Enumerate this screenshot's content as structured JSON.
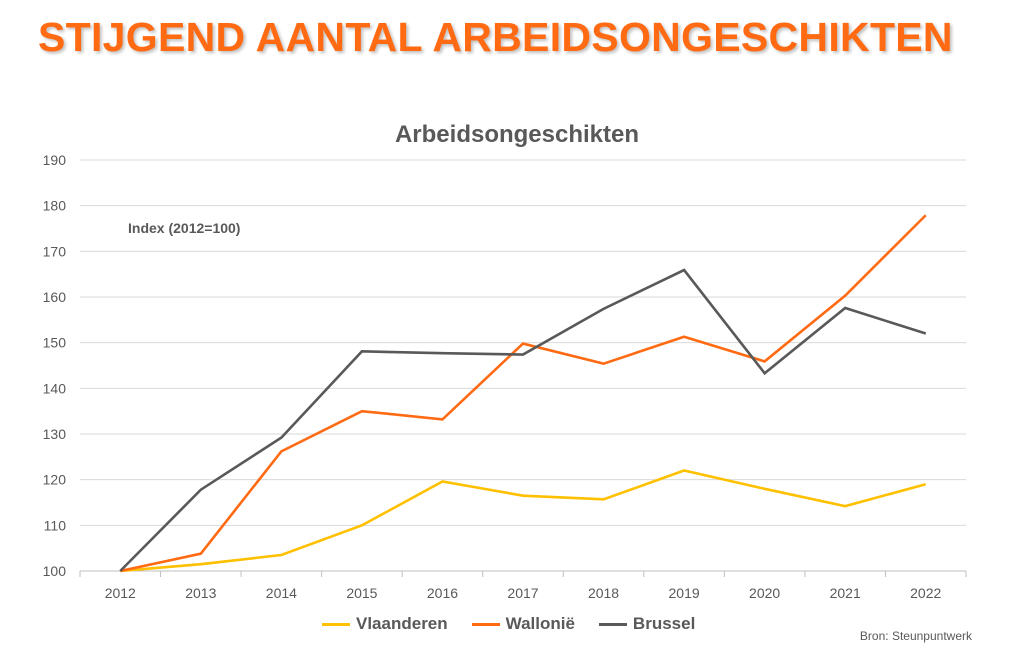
{
  "headline": "STIJGEND AANTAL ARBEIDSONGESCHIKTEN",
  "source": "Bron: Steunpuntwerk",
  "chart_data": {
    "type": "line",
    "title": "Arbeidsongeschikten",
    "annotation": "Index (2012=100)",
    "categories": [
      "2012",
      "2013",
      "2014",
      "2015",
      "2016",
      "2017",
      "2018",
      "2019",
      "2020",
      "2021",
      "2022"
    ],
    "ylim": [
      100,
      190
    ],
    "yticks": [
      100,
      110,
      120,
      130,
      140,
      150,
      160,
      170,
      180,
      190
    ],
    "grid": true,
    "legend": "bottom",
    "series": [
      {
        "name": "Vlaanderen",
        "color": "#ffc000",
        "values": [
          100,
          101.5,
          103.5,
          110,
          119.6,
          116.5,
          115.7,
          122,
          118,
          114.2,
          119
        ]
      },
      {
        "name": "Wallonië",
        "color": "#ff6a13",
        "values": [
          100,
          103.8,
          126.2,
          135,
          133.2,
          149.8,
          145.4,
          151.3,
          145.9,
          160.3,
          177.9
        ]
      },
      {
        "name": "Brussel",
        "color": "#595959",
        "values": [
          100,
          117.8,
          129.2,
          148.1,
          147.7,
          147.4,
          157.4,
          165.9,
          143.3,
          157.6,
          152
        ]
      }
    ]
  }
}
